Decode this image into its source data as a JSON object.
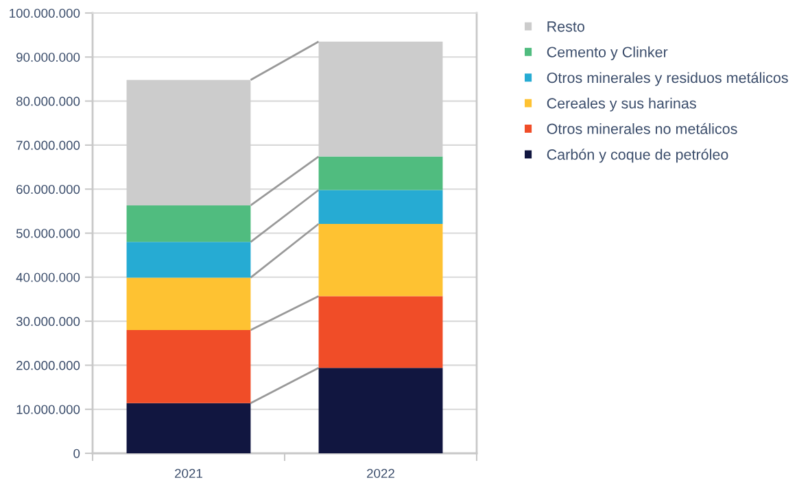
{
  "chart_data": {
    "type": "bar",
    "stacked": true,
    "categories": [
      "2021",
      "2022"
    ],
    "series": [
      {
        "name": "Carbón y coque de petróleo",
        "color": "#111640",
        "values": [
          11400000,
          19400000
        ]
      },
      {
        "name": "Otros minerales no metálicos",
        "color": "#f04d28",
        "values": [
          16600000,
          16300000
        ]
      },
      {
        "name": "Cereales y sus harinas",
        "color": "#fec232",
        "values": [
          11900000,
          16400000
        ]
      },
      {
        "name": "Otros minerales y residuos metálicos",
        "color": "#26abd3",
        "values": [
          8100000,
          7700000
        ]
      },
      {
        "name": "Cemento y Clinker",
        "color": "#50bc7f",
        "values": [
          8300000,
          7600000
        ]
      },
      {
        "name": "Resto",
        "color": "#cccccc",
        "values": [
          28500000,
          26100000
        ]
      }
    ],
    "ylim": [
      0,
      100000000
    ],
    "yticks": [
      0,
      {
        "value": 10000000,
        "label": "10.000.000"
      },
      {
        "value": 20000000,
        "label": "20.000.000"
      },
      {
        "value": 30000000,
        "label": "30.000.000"
      },
      {
        "value": 40000000,
        "label": "40.000.000"
      },
      {
        "value": 50000000,
        "label": "50.000.000"
      },
      {
        "value": 60000000,
        "label": "60.000.000"
      },
      {
        "value": 70000000,
        "label": "70.000.000"
      },
      {
        "value": 80000000,
        "label": "80.000.000"
      },
      {
        "value": 90000000,
        "label": "90.000.000"
      },
      {
        "value": 100000000,
        "label": "100.000.000"
      }
    ],
    "grid": "y",
    "legend": "right"
  }
}
